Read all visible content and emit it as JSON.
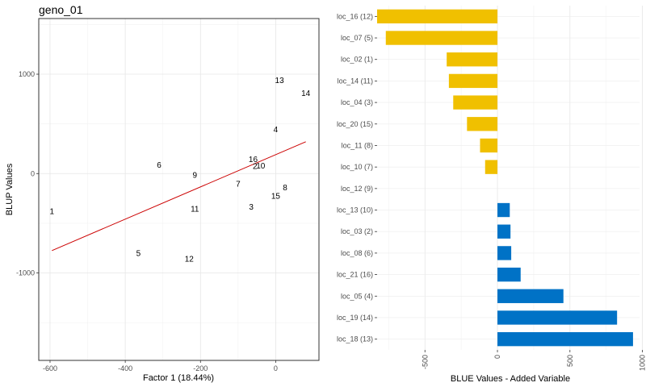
{
  "chart_data": [
    {
      "type": "scatter",
      "title": "geno_01",
      "xlabel": "Factor 1 (18.44%)",
      "ylabel": "BLUP Values",
      "xlim": [
        -630,
        115
      ],
      "ylim": [
        -1880,
        1560
      ],
      "xticks": [
        -600,
        -400,
        -200,
        0
      ],
      "yticks": [
        -1000,
        0,
        1000
      ],
      "grid": true,
      "trend_color": "#cc0000",
      "trend_line": {
        "x": [
          -595,
          80
        ],
        "y": [
          -775,
          320
        ]
      },
      "points": [
        {
          "label": "1",
          "x": -595,
          "y": -375
        },
        {
          "label": "2",
          "x": -55,
          "y": 80
        },
        {
          "label": "3",
          "x": -65,
          "y": -330
        },
        {
          "label": "4",
          "x": 0,
          "y": 450
        },
        {
          "label": "5",
          "x": -365,
          "y": -795
        },
        {
          "label": "6",
          "x": -310,
          "y": 90
        },
        {
          "label": "7",
          "x": -100,
          "y": -100
        },
        {
          "label": "8",
          "x": 25,
          "y": -135
        },
        {
          "label": "9",
          "x": -215,
          "y": -10
        },
        {
          "label": "10",
          "x": -40,
          "y": 85
        },
        {
          "label": "11",
          "x": -215,
          "y": -350
        },
        {
          "label": "12",
          "x": -230,
          "y": -855
        },
        {
          "label": "13",
          "x": 10,
          "y": 945
        },
        {
          "label": "14",
          "x": 80,
          "y": 815
        },
        {
          "label": "15",
          "x": 0,
          "y": -220
        },
        {
          "label": "16",
          "x": -60,
          "y": 150
        }
      ]
    },
    {
      "type": "bar",
      "orientation": "horizontal",
      "xlabel": "BLUE Values - Added Variable",
      "ylabel": "",
      "xlim": [
        -830,
        980
      ],
      "xticks": [
        -500,
        0,
        500,
        1000
      ],
      "grid": true,
      "colors": {
        "positive": "#0072c6",
        "negative": "#f0c000"
      },
      "categories": [
        "loc_16 (12)",
        "loc_07 (5)",
        "loc_02 (1)",
        "loc_14 (11)",
        "loc_04 (3)",
        "loc_20 (15)",
        "loc_11 (8)",
        "loc_10 (7)",
        "loc_12 (9)",
        "loc_13 (10)",
        "loc_03 (2)",
        "loc_08 (6)",
        "loc_21 (16)",
        "loc_05 (4)",
        "loc_19 (14)",
        "loc_18 (13)"
      ],
      "values": [
        -830,
        -770,
        -350,
        -335,
        -305,
        -210,
        -120,
        -85,
        0,
        85,
        90,
        95,
        160,
        455,
        825,
        935
      ]
    }
  ]
}
